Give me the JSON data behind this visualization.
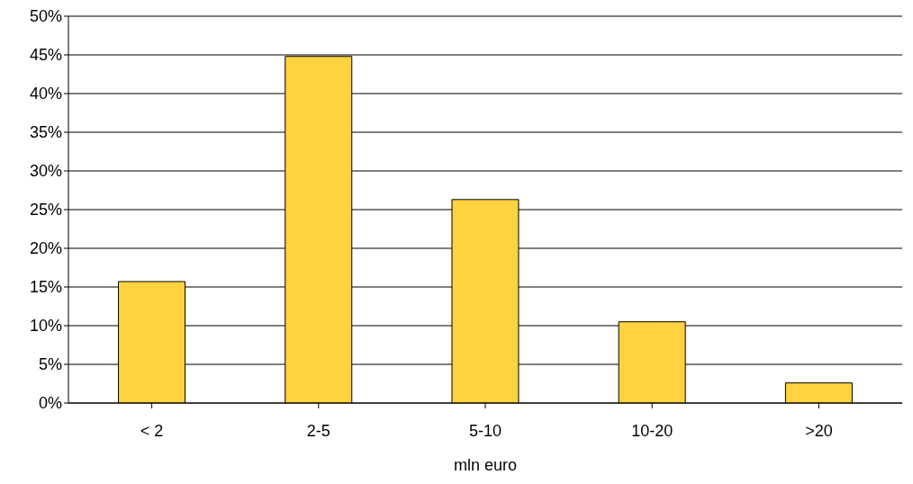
{
  "chart_data": {
    "type": "bar",
    "xlabel": "mln euro",
    "categories": [
      "< 2",
      "2-5",
      "5-10",
      "10-20",
      ">20"
    ],
    "values": [
      15.7,
      44.8,
      26.3,
      10.5,
      2.6
    ],
    "color": "#ffd23f",
    "ylim": [
      0,
      50
    ],
    "yticks": [
      {
        "value": 0,
        "label": "0%"
      },
      {
        "value": 5,
        "label": "5%"
      },
      {
        "value": 10,
        "label": "10%"
      },
      {
        "value": 15,
        "label": "15%"
      },
      {
        "value": 20,
        "label": "20%"
      },
      {
        "value": 25,
        "label": "25%"
      },
      {
        "value": 30,
        "label": "30%"
      },
      {
        "value": 35,
        "label": "35%"
      },
      {
        "value": 40,
        "label": "40%"
      },
      {
        "value": 45,
        "label": "45%"
      },
      {
        "value": 50,
        "label": "50%"
      }
    ],
    "grid": "y"
  }
}
